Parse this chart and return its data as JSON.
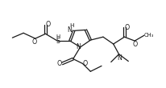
{
  "bg_color": "#ffffff",
  "line_color": "#1a1a1a",
  "line_width": 0.9,
  "font_size": 5.2,
  "fig_width": 2.07,
  "fig_height": 1.1,
  "xlim": [
    0,
    10.5
  ],
  "ylim": [
    0,
    5.5
  ]
}
